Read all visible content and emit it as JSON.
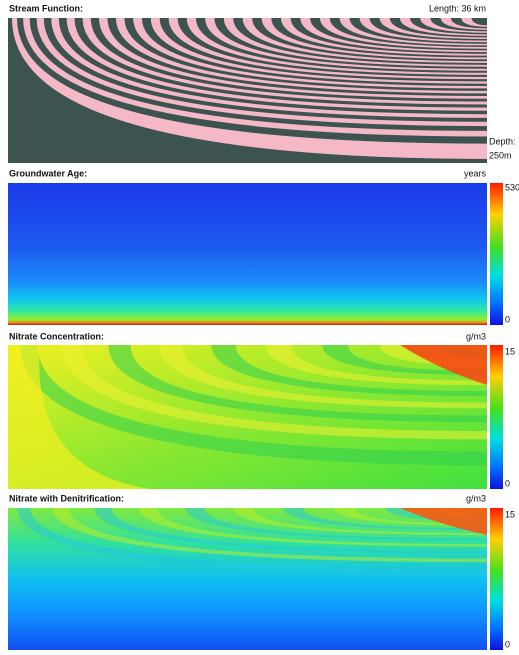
{
  "panels": [
    {
      "title": "Stream Function:",
      "length": "Length: 36 km",
      "depth": "Depth:",
      "depth_value": "250m"
    },
    {
      "title": "Groundwater Age:",
      "unit": "years",
      "scale_max": 530,
      "scale_min": 0
    },
    {
      "title": "Nitrate Concentration:",
      "unit": "g/m3",
      "scale_max": 15,
      "scale_min": 0
    },
    {
      "title": "Nitrate with Denitrification:",
      "unit": "g/m3",
      "scale_max": 15,
      "scale_min": 0
    }
  ]
}
